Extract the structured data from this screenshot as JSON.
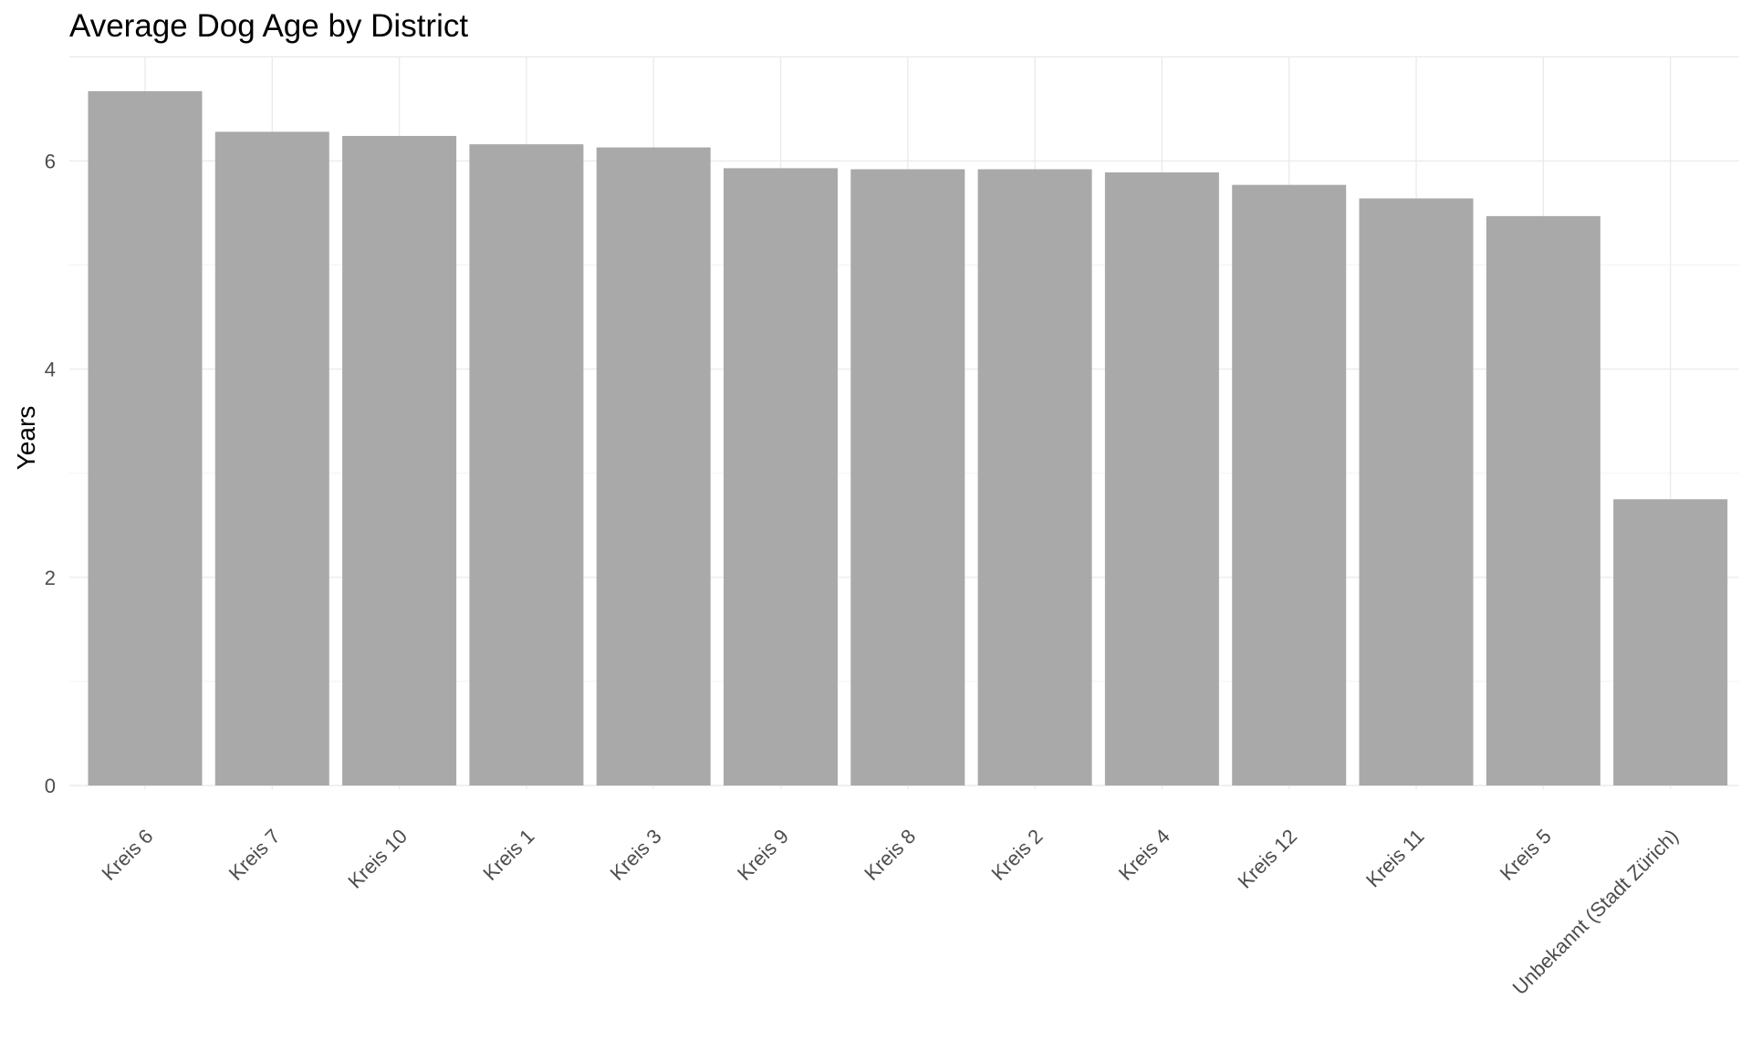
{
  "chart_data": {
    "type": "bar",
    "title": "Average Dog Age by District",
    "xlabel": "",
    "ylabel": "Years",
    "categories": [
      "Kreis 6",
      "Kreis 7",
      "Kreis 10",
      "Kreis 1",
      "Kreis 3",
      "Kreis 9",
      "Kreis 8",
      "Kreis 2",
      "Kreis 4",
      "Kreis 12",
      "Kreis 11",
      "Kreis 5",
      "Unbekannt (Stadt Zürich)"
    ],
    "values": [
      6.67,
      6.28,
      6.24,
      6.16,
      6.13,
      5.93,
      5.92,
      5.92,
      5.89,
      5.77,
      5.64,
      5.47,
      2.75
    ],
    "ylim": [
      0,
      7
    ],
    "yticks": [
      0,
      2,
      4,
      6
    ],
    "grid": true,
    "legend": "none",
    "bar_color": "#a9a9a9"
  }
}
